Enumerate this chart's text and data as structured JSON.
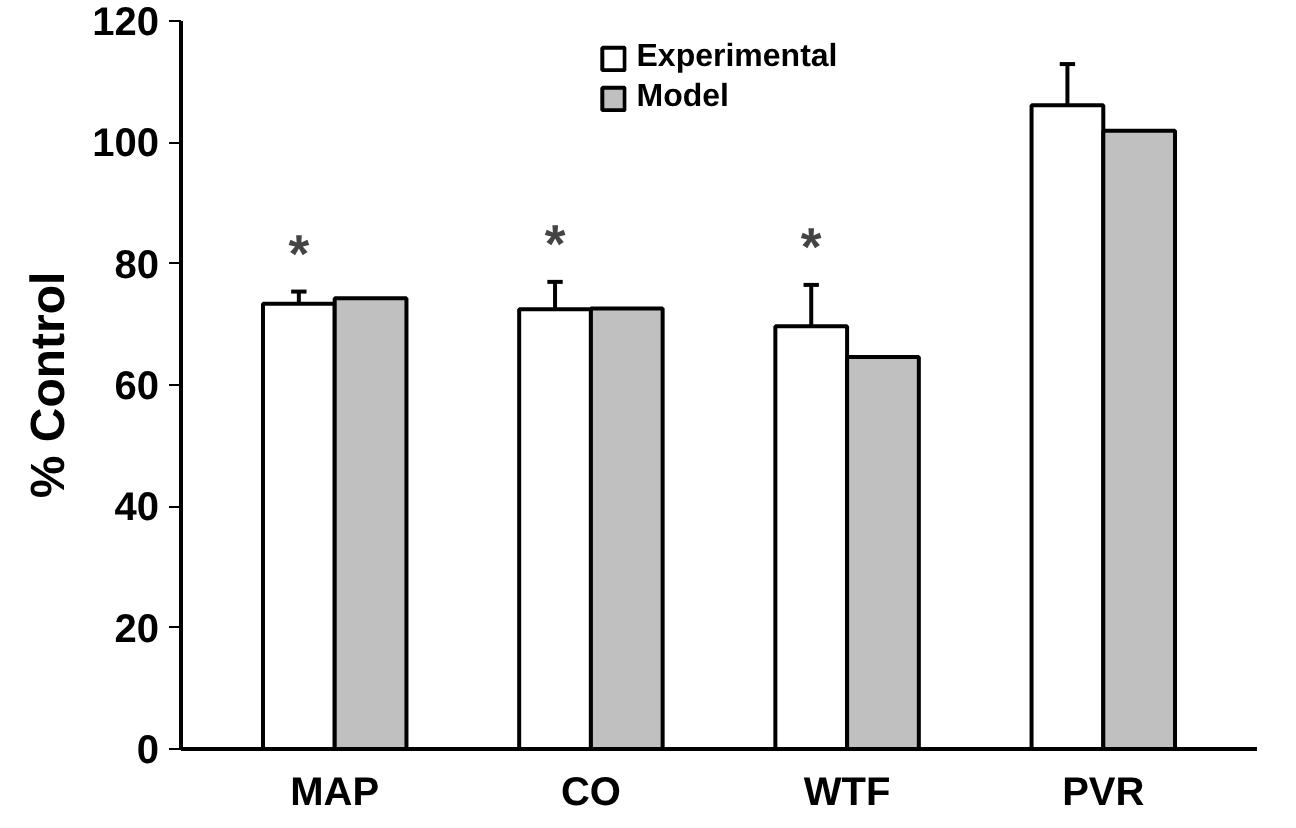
{
  "chart_data": {
    "type": "bar",
    "ylabel": "% Control",
    "categories": [
      "MAP",
      "CO",
      "WTF",
      "PVR"
    ],
    "series": [
      {
        "name": "Experimental",
        "color": "#ffffff",
        "values": [
          73.4,
          72.5,
          69.7,
          106.1
        ],
        "errors": [
          [
            73.4,
            75.4
          ],
          [
            72.5,
            77.0
          ],
          [
            69.7,
            76.5
          ],
          [
            106.1,
            112.9
          ]
        ]
      },
      {
        "name": "Model",
        "color": "#c0c0c0",
        "values": [
          74.3,
          72.6,
          64.6,
          101.9
        ]
      }
    ],
    "annotations": [
      "*",
      "*",
      "*"
    ],
    "ylim": [
      0,
      120
    ],
    "yticks": [
      0,
      20,
      40,
      60,
      80,
      100,
      120
    ],
    "grid": false,
    "legend": "top"
  }
}
